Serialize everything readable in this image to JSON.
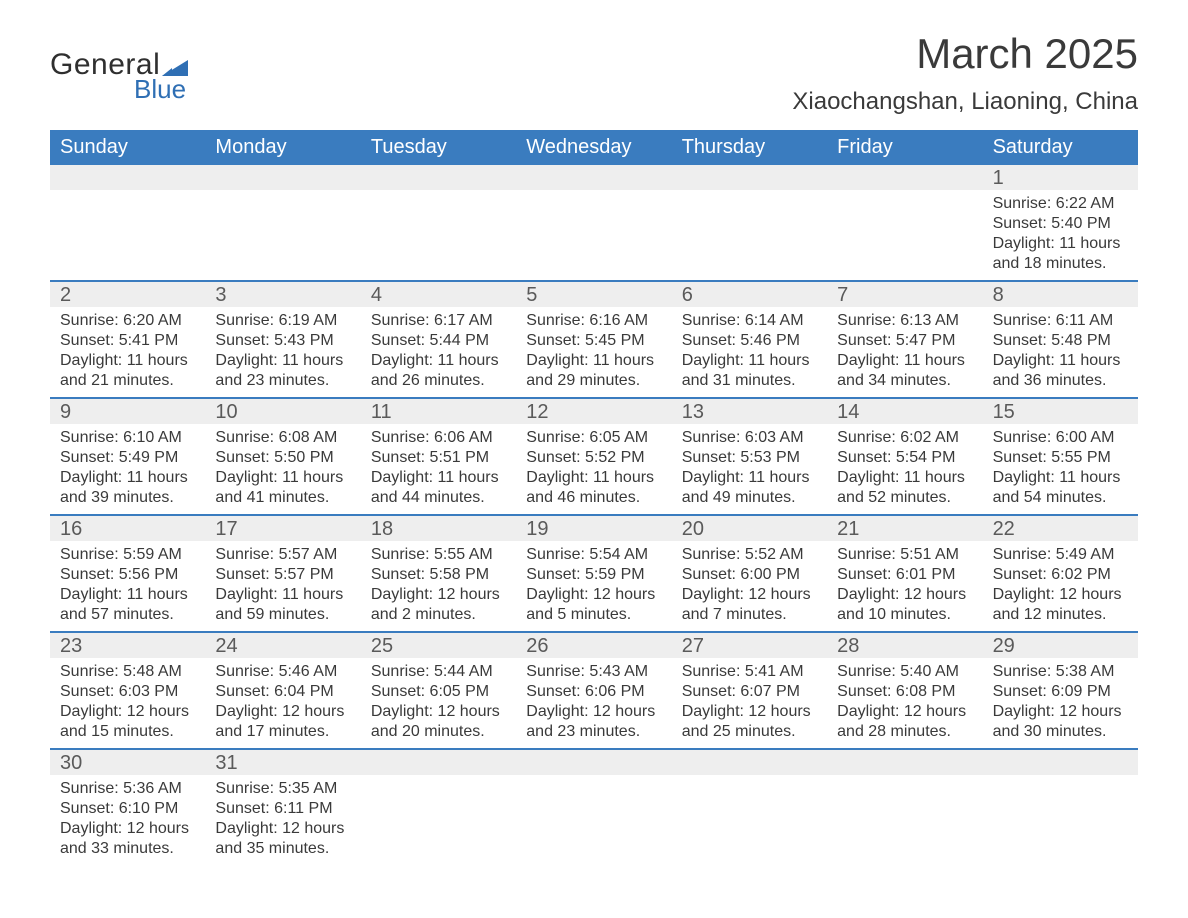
{
  "brand": {
    "text_general": "General",
    "text_blue": "Blue",
    "logo_color": "#2f6fb4"
  },
  "title": {
    "month": "March 2025",
    "location": "Xiaochangshan, Liaoning, China"
  },
  "colors": {
    "header_bg": "#3a7cbf",
    "header_text": "#ffffff",
    "daynum_bg": "#eeeeee",
    "row_separator": "#3a7cbf",
    "body_text": "#3a3a3a",
    "daynum_text": "#5a5a5a",
    "page_bg": "#ffffff"
  },
  "typography": {
    "title_month_fontsize": 42,
    "title_location_fontsize": 24,
    "dow_fontsize": 20,
    "daynum_fontsize": 20,
    "cell_fontsize": 16
  },
  "calendar": {
    "type": "table",
    "columns": 7,
    "days_of_week": [
      "Sunday",
      "Monday",
      "Tuesday",
      "Wednesday",
      "Thursday",
      "Friday",
      "Saturday"
    ],
    "weeks": [
      [
        null,
        null,
        null,
        null,
        null,
        null,
        {
          "day": "1",
          "sunrise": "Sunrise: 6:22 AM",
          "sunset": "Sunset: 5:40 PM",
          "daylight1": "Daylight: 11 hours",
          "daylight2": "and 18 minutes."
        }
      ],
      [
        {
          "day": "2",
          "sunrise": "Sunrise: 6:20 AM",
          "sunset": "Sunset: 5:41 PM",
          "daylight1": "Daylight: 11 hours",
          "daylight2": "and 21 minutes."
        },
        {
          "day": "3",
          "sunrise": "Sunrise: 6:19 AM",
          "sunset": "Sunset: 5:43 PM",
          "daylight1": "Daylight: 11 hours",
          "daylight2": "and 23 minutes."
        },
        {
          "day": "4",
          "sunrise": "Sunrise: 6:17 AM",
          "sunset": "Sunset: 5:44 PM",
          "daylight1": "Daylight: 11 hours",
          "daylight2": "and 26 minutes."
        },
        {
          "day": "5",
          "sunrise": "Sunrise: 6:16 AM",
          "sunset": "Sunset: 5:45 PM",
          "daylight1": "Daylight: 11 hours",
          "daylight2": "and 29 minutes."
        },
        {
          "day": "6",
          "sunrise": "Sunrise: 6:14 AM",
          "sunset": "Sunset: 5:46 PM",
          "daylight1": "Daylight: 11 hours",
          "daylight2": "and 31 minutes."
        },
        {
          "day": "7",
          "sunrise": "Sunrise: 6:13 AM",
          "sunset": "Sunset: 5:47 PM",
          "daylight1": "Daylight: 11 hours",
          "daylight2": "and 34 minutes."
        },
        {
          "day": "8",
          "sunrise": "Sunrise: 6:11 AM",
          "sunset": "Sunset: 5:48 PM",
          "daylight1": "Daylight: 11 hours",
          "daylight2": "and 36 minutes."
        }
      ],
      [
        {
          "day": "9",
          "sunrise": "Sunrise: 6:10 AM",
          "sunset": "Sunset: 5:49 PM",
          "daylight1": "Daylight: 11 hours",
          "daylight2": "and 39 minutes."
        },
        {
          "day": "10",
          "sunrise": "Sunrise: 6:08 AM",
          "sunset": "Sunset: 5:50 PM",
          "daylight1": "Daylight: 11 hours",
          "daylight2": "and 41 minutes."
        },
        {
          "day": "11",
          "sunrise": "Sunrise: 6:06 AM",
          "sunset": "Sunset: 5:51 PM",
          "daylight1": "Daylight: 11 hours",
          "daylight2": "and 44 minutes."
        },
        {
          "day": "12",
          "sunrise": "Sunrise: 6:05 AM",
          "sunset": "Sunset: 5:52 PM",
          "daylight1": "Daylight: 11 hours",
          "daylight2": "and 46 minutes."
        },
        {
          "day": "13",
          "sunrise": "Sunrise: 6:03 AM",
          "sunset": "Sunset: 5:53 PM",
          "daylight1": "Daylight: 11 hours",
          "daylight2": "and 49 minutes."
        },
        {
          "day": "14",
          "sunrise": "Sunrise: 6:02 AM",
          "sunset": "Sunset: 5:54 PM",
          "daylight1": "Daylight: 11 hours",
          "daylight2": "and 52 minutes."
        },
        {
          "day": "15",
          "sunrise": "Sunrise: 6:00 AM",
          "sunset": "Sunset: 5:55 PM",
          "daylight1": "Daylight: 11 hours",
          "daylight2": "and 54 minutes."
        }
      ],
      [
        {
          "day": "16",
          "sunrise": "Sunrise: 5:59 AM",
          "sunset": "Sunset: 5:56 PM",
          "daylight1": "Daylight: 11 hours",
          "daylight2": "and 57 minutes."
        },
        {
          "day": "17",
          "sunrise": "Sunrise: 5:57 AM",
          "sunset": "Sunset: 5:57 PM",
          "daylight1": "Daylight: 11 hours",
          "daylight2": "and 59 minutes."
        },
        {
          "day": "18",
          "sunrise": "Sunrise: 5:55 AM",
          "sunset": "Sunset: 5:58 PM",
          "daylight1": "Daylight: 12 hours",
          "daylight2": "and 2 minutes."
        },
        {
          "day": "19",
          "sunrise": "Sunrise: 5:54 AM",
          "sunset": "Sunset: 5:59 PM",
          "daylight1": "Daylight: 12 hours",
          "daylight2": "and 5 minutes."
        },
        {
          "day": "20",
          "sunrise": "Sunrise: 5:52 AM",
          "sunset": "Sunset: 6:00 PM",
          "daylight1": "Daylight: 12 hours",
          "daylight2": "and 7 minutes."
        },
        {
          "day": "21",
          "sunrise": "Sunrise: 5:51 AM",
          "sunset": "Sunset: 6:01 PM",
          "daylight1": "Daylight: 12 hours",
          "daylight2": "and 10 minutes."
        },
        {
          "day": "22",
          "sunrise": "Sunrise: 5:49 AM",
          "sunset": "Sunset: 6:02 PM",
          "daylight1": "Daylight: 12 hours",
          "daylight2": "and 12 minutes."
        }
      ],
      [
        {
          "day": "23",
          "sunrise": "Sunrise: 5:48 AM",
          "sunset": "Sunset: 6:03 PM",
          "daylight1": "Daylight: 12 hours",
          "daylight2": "and 15 minutes."
        },
        {
          "day": "24",
          "sunrise": "Sunrise: 5:46 AM",
          "sunset": "Sunset: 6:04 PM",
          "daylight1": "Daylight: 12 hours",
          "daylight2": "and 17 minutes."
        },
        {
          "day": "25",
          "sunrise": "Sunrise: 5:44 AM",
          "sunset": "Sunset: 6:05 PM",
          "daylight1": "Daylight: 12 hours",
          "daylight2": "and 20 minutes."
        },
        {
          "day": "26",
          "sunrise": "Sunrise: 5:43 AM",
          "sunset": "Sunset: 6:06 PM",
          "daylight1": "Daylight: 12 hours",
          "daylight2": "and 23 minutes."
        },
        {
          "day": "27",
          "sunrise": "Sunrise: 5:41 AM",
          "sunset": "Sunset: 6:07 PM",
          "daylight1": "Daylight: 12 hours",
          "daylight2": "and 25 minutes."
        },
        {
          "day": "28",
          "sunrise": "Sunrise: 5:40 AM",
          "sunset": "Sunset: 6:08 PM",
          "daylight1": "Daylight: 12 hours",
          "daylight2": "and 28 minutes."
        },
        {
          "day": "29",
          "sunrise": "Sunrise: 5:38 AM",
          "sunset": "Sunset: 6:09 PM",
          "daylight1": "Daylight: 12 hours",
          "daylight2": "and 30 minutes."
        }
      ],
      [
        {
          "day": "30",
          "sunrise": "Sunrise: 5:36 AM",
          "sunset": "Sunset: 6:10 PM",
          "daylight1": "Daylight: 12 hours",
          "daylight2": "and 33 minutes."
        },
        {
          "day": "31",
          "sunrise": "Sunrise: 5:35 AM",
          "sunset": "Sunset: 6:11 PM",
          "daylight1": "Daylight: 12 hours",
          "daylight2": "and 35 minutes."
        },
        null,
        null,
        null,
        null,
        null
      ]
    ]
  }
}
